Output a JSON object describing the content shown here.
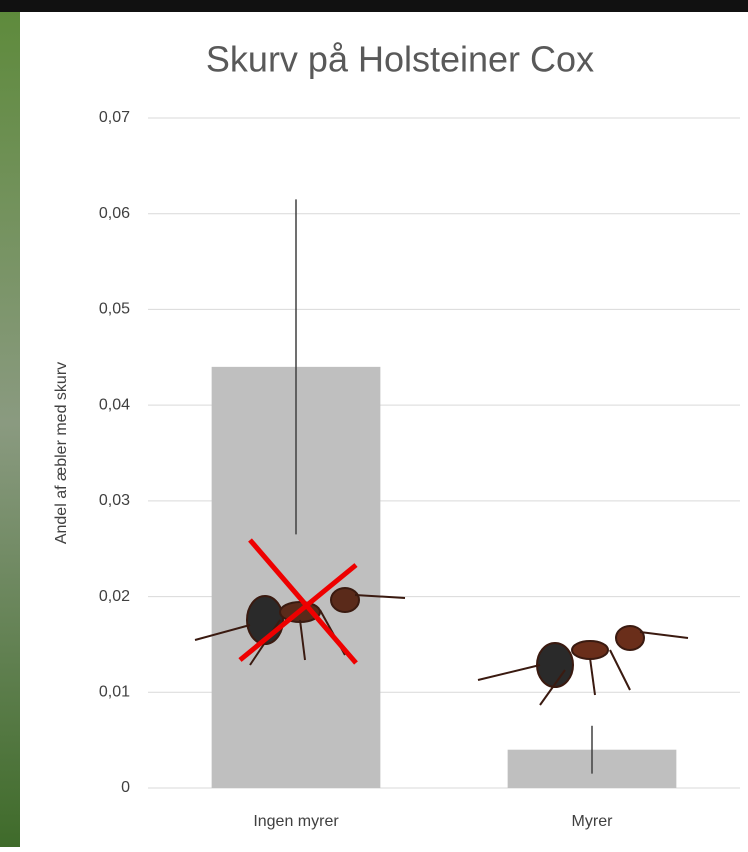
{
  "chart_data": {
    "type": "bar",
    "title": "Skurv på Holsteiner Cox",
    "y_label": "Andel af æbler med skurv",
    "categories": [
      "Ingen myrer",
      "Myrer"
    ],
    "values": [
      0.044,
      0.004
    ],
    "errors": [
      0.0175,
      0.0025
    ],
    "color": "#bfbfbf",
    "ylim": [
      0,
      0.07
    ],
    "yticks": [
      0,
      {
        "value": 0.01,
        "label": "0,01"
      },
      {
        "value": 0.02,
        "label": "0,02"
      },
      {
        "value": 0.03,
        "label": "0,03"
      },
      {
        "value": 0.04,
        "label": "0,04"
      },
      {
        "value": 0.05,
        "label": "0,05"
      },
      {
        "value": 0.06,
        "label": "0,06"
      },
      {
        "value": 0.07,
        "label": "0,07"
      }
    ],
    "grid": true
  }
}
